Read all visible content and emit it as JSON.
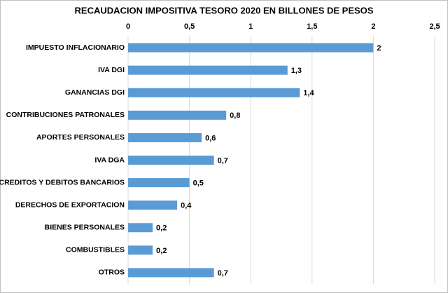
{
  "chart_data": {
    "type": "bar",
    "orientation": "horizontal",
    "title": "RECAUDACION  IMPOSITIVA TESORO 2020 EN BILLONES DE PESOS",
    "categories": [
      "IMPUESTO INFLACIONARIO",
      "IVA DGI",
      "GANANCIAS DGI",
      "CONTRIBUCIONES PATRONALES",
      "APORTES PERSONALES",
      "IVA DGA",
      "CREDITOS Y DEBITOS BANCARIOS",
      "DERECHOS DE EXPORTACION",
      "BIENES PERSONALES",
      "COMBUSTIBLES",
      "OTROS"
    ],
    "values": [
      2,
      1.3,
      1.4,
      0.8,
      0.6,
      0.7,
      0.5,
      0.4,
      0.2,
      0.2,
      0.7
    ],
    "value_labels": [
      "2",
      "1,3",
      "1,4",
      "0,8",
      "0,6",
      "0,7",
      "0,5",
      "0,4",
      "0,2",
      "0,2",
      "0,7"
    ],
    "color": "#5b9bd5",
    "xlim": [
      0,
      2.5
    ],
    "xticks": [
      0,
      {
        "value": 0.5,
        "label": "0,5"
      },
      1,
      {
        "value": 1.5,
        "label": "1,5"
      },
      2,
      {
        "value": 2.5,
        "label": "2,5"
      }
    ],
    "grid": true
  }
}
